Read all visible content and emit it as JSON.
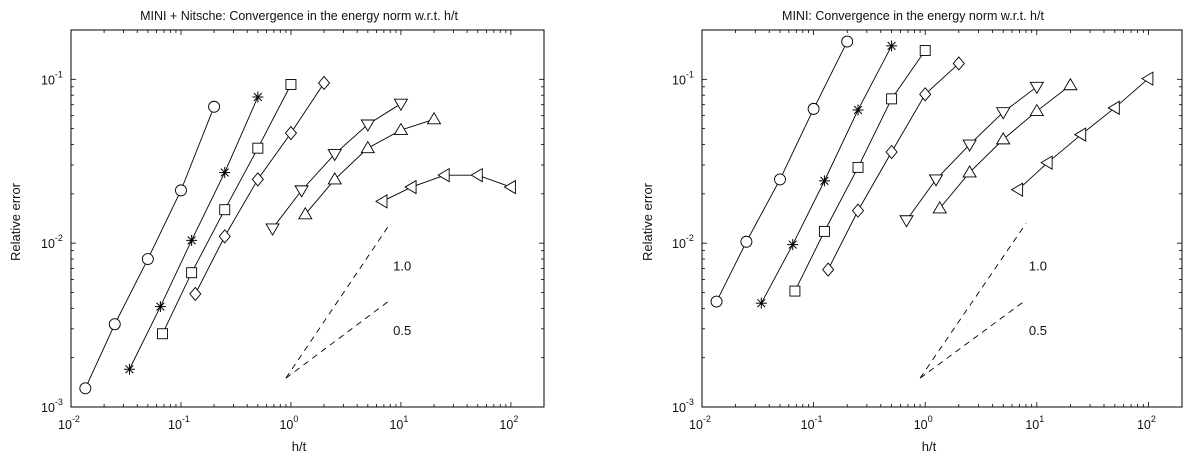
{
  "chart_data": [
    {
      "type": "line",
      "title": "MINI + Nitsche: Convergence in the energy norm w.r.t. h/t",
      "xlabel": "h/t",
      "ylabel": "Relative error",
      "xscale": "log",
      "yscale": "log",
      "xlim": [
        0.01,
        200
      ],
      "ylim": [
        0.001,
        0.2
      ],
      "xticks": [
        {
          "base": "10",
          "exp": "-2",
          "value": 0.01
        },
        {
          "base": "10",
          "exp": "-1",
          "value": 0.1
        },
        {
          "base": "10",
          "exp": "0",
          "value": 1
        },
        {
          "base": "10",
          "exp": "1",
          "value": 10
        },
        {
          "base": "10",
          "exp": "2",
          "value": 100
        }
      ],
      "yticks": [
        {
          "base": "10",
          "exp": "-3",
          "value": 0.001
        },
        {
          "base": "10",
          "exp": "-2",
          "value": 0.01
        },
        {
          "base": "10",
          "exp": "-1",
          "value": 0.1
        }
      ],
      "series": [
        {
          "marker": "circle",
          "points": [
            [
              0.0135,
              0.0013
            ],
            [
              0.025,
              0.0032
            ],
            [
              0.05,
              0.008
            ],
            [
              0.1,
              0.021
            ],
            [
              0.2,
              0.068
            ]
          ]
        },
        {
          "marker": "asterisk",
          "points": [
            [
              0.034,
              0.0017
            ],
            [
              0.065,
              0.0041
            ],
            [
              0.125,
              0.0104
            ],
            [
              0.25,
              0.027
            ],
            [
              0.5,
              0.078
            ]
          ]
        },
        {
          "marker": "square",
          "points": [
            [
              0.068,
              0.0028
            ],
            [
              0.125,
              0.0066
            ],
            [
              0.25,
              0.016
            ],
            [
              0.5,
              0.038
            ],
            [
              1.0,
              0.093
            ]
          ]
        },
        {
          "marker": "diamond",
          "points": [
            [
              0.135,
              0.0049
            ],
            [
              0.25,
              0.011
            ],
            [
              0.5,
              0.0245
            ],
            [
              1.0,
              0.047
            ],
            [
              2.0,
              0.095
            ]
          ]
        },
        {
          "marker": "triangle-down",
          "points": [
            [
              0.68,
              0.0123
            ],
            [
              1.25,
              0.021
            ],
            [
              2.5,
              0.035
            ],
            [
              5.0,
              0.053
            ],
            [
              10.0,
              0.071
            ]
          ]
        },
        {
          "marker": "triangle-up",
          "points": [
            [
              1.35,
              0.015
            ],
            [
              2.5,
              0.0245
            ],
            [
              5.0,
              0.038
            ],
            [
              10.0,
              0.049
            ],
            [
              20.0,
              0.057
            ]
          ]
        },
        {
          "marker": "triangle-left",
          "points": [
            [
              6.8,
              0.018
            ],
            [
              12.5,
              0.022
            ],
            [
              25.0,
              0.026
            ],
            [
              50.0,
              0.026
            ],
            [
              100.0,
              0.022
            ]
          ]
        }
      ],
      "reference_slopes": [
        {
          "label": "1.0",
          "from": [
            0.9,
            0.0015
          ],
          "to": [
            8.0,
            0.0132
          ],
          "label_at": [
            8.5,
            0.0072
          ]
        },
        {
          "label": "0.5",
          "from": [
            0.9,
            0.0015
          ],
          "to": [
            8.0,
            0.0045
          ],
          "label_at": [
            8.5,
            0.0029
          ]
        }
      ]
    },
    {
      "type": "line",
      "title": "MINI: Convergence in the energy norm w.r.t. h/t",
      "xlabel": "h/t",
      "ylabel": "Relative error",
      "xscale": "log",
      "yscale": "log",
      "xlim": [
        0.01,
        200
      ],
      "ylim": [
        0.001,
        0.2
      ],
      "xticks": [
        {
          "base": "10",
          "exp": "-2",
          "value": 0.01
        },
        {
          "base": "10",
          "exp": "-1",
          "value": 0.1
        },
        {
          "base": "10",
          "exp": "0",
          "value": 1
        },
        {
          "base": "10",
          "exp": "1",
          "value": 10
        },
        {
          "base": "10",
          "exp": "2",
          "value": 100
        }
      ],
      "yticks": [
        {
          "base": "10",
          "exp": "-3",
          "value": 0.001
        },
        {
          "base": "10",
          "exp": "-2",
          "value": 0.01
        },
        {
          "base": "10",
          "exp": "-1",
          "value": 0.1
        }
      ],
      "series": [
        {
          "marker": "circle",
          "points": [
            [
              0.0135,
              0.0044
            ],
            [
              0.025,
              0.0102
            ],
            [
              0.05,
              0.0245
            ],
            [
              0.1,
              0.066
            ],
            [
              0.2,
              0.17
            ]
          ]
        },
        {
          "marker": "asterisk",
          "points": [
            [
              0.034,
              0.0043
            ],
            [
              0.065,
              0.0098
            ],
            [
              0.125,
              0.024
            ],
            [
              0.25,
              0.065
            ],
            [
              0.5,
              0.16
            ]
          ]
        },
        {
          "marker": "square",
          "points": [
            [
              0.068,
              0.0051
            ],
            [
              0.125,
              0.0118
            ],
            [
              0.25,
              0.029
            ],
            [
              0.5,
              0.076
            ],
            [
              1.0,
              0.15
            ]
          ]
        },
        {
          "marker": "diamond",
          "points": [
            [
              0.135,
              0.0069
            ],
            [
              0.25,
              0.0158
            ],
            [
              0.5,
              0.036
            ],
            [
              1.0,
              0.081
            ],
            [
              2.0,
              0.125
            ]
          ]
        },
        {
          "marker": "triangle-down",
          "points": [
            [
              0.68,
              0.0138
            ],
            [
              1.25,
              0.0245
            ],
            [
              2.5,
              0.04
            ],
            [
              5.0,
              0.063
            ],
            [
              10.0,
              0.09
            ]
          ]
        },
        {
          "marker": "triangle-up",
          "points": [
            [
              1.35,
              0.0163
            ],
            [
              2.5,
              0.027
            ],
            [
              5.0,
              0.043
            ],
            [
              10.0,
              0.064
            ],
            [
              20.0,
              0.092
            ]
          ]
        },
        {
          "marker": "triangle-left",
          "points": [
            [
              6.8,
              0.0212
            ],
            [
              12.5,
              0.031
            ],
            [
              25.0,
              0.046
            ],
            [
              50.0,
              0.067
            ],
            [
              100.0,
              0.101
            ]
          ]
        }
      ],
      "reference_slopes": [
        {
          "label": "1.0",
          "from": [
            0.9,
            0.0015
          ],
          "to": [
            8.0,
            0.0132
          ],
          "label_at": [
            8.5,
            0.0072
          ]
        },
        {
          "label": "0.5",
          "from": [
            0.9,
            0.0015
          ],
          "to": [
            8.0,
            0.0045
          ],
          "label_at": [
            8.5,
            0.0029
          ]
        }
      ]
    }
  ]
}
